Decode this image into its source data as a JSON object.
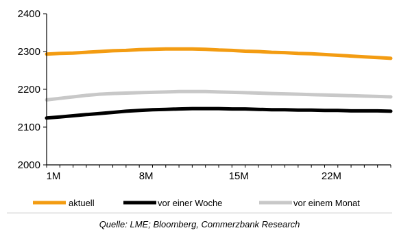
{
  "chart_data": {
    "type": "line",
    "x": [
      1,
      2,
      3,
      4,
      5,
      6,
      7,
      8,
      9,
      10,
      11,
      12,
      13,
      14,
      15,
      16,
      17,
      18,
      19,
      20,
      21,
      22,
      23,
      24,
      25,
      26,
      27
    ],
    "xticks": [
      {
        "x": 1,
        "label": "1M"
      },
      {
        "x": 8,
        "label": "8M"
      },
      {
        "x": 15,
        "label": "15M"
      },
      {
        "x": 22,
        "label": "22M"
      }
    ],
    "xlim": [
      1,
      27
    ],
    "ylim": [
      2000,
      2400
    ],
    "yticks": [
      2000,
      2100,
      2200,
      2300,
      2400
    ],
    "grid": false,
    "legend_position": "bottom",
    "title": "",
    "xlabel": "",
    "ylabel": "",
    "series": [
      {
        "name": "aktuell",
        "color": "#f39c12",
        "values": [
          2293,
          2295,
          2296,
          2298,
          2300,
          2302,
          2303,
          2305,
          2306,
          2307,
          2307,
          2307,
          2306,
          2304,
          2303,
          2301,
          2300,
          2298,
          2297,
          2295,
          2294,
          2292,
          2290,
          2288,
          2286,
          2284,
          2282
        ]
      },
      {
        "name": "vor einer Woche",
        "color": "#000000",
        "values": [
          2124,
          2127,
          2130,
          2133,
          2136,
          2139,
          2142,
          2144,
          2146,
          2147,
          2148,
          2149,
          2149,
          2149,
          2148,
          2148,
          2147,
          2146,
          2146,
          2145,
          2145,
          2144,
          2144,
          2143,
          2143,
          2143,
          2142
        ]
      },
      {
        "name": "vor einem Monat",
        "color": "#c8c8c8",
        "values": [
          2172,
          2176,
          2180,
          2184,
          2187,
          2189,
          2190,
          2191,
          2192,
          2193,
          2194,
          2194,
          2194,
          2193,
          2192,
          2191,
          2190,
          2189,
          2188,
          2187,
          2186,
          2185,
          2184,
          2183,
          2182,
          2181,
          2180
        ]
      }
    ]
  },
  "source": "Quelle: LME; Bloomberg, Commerzbank Research"
}
